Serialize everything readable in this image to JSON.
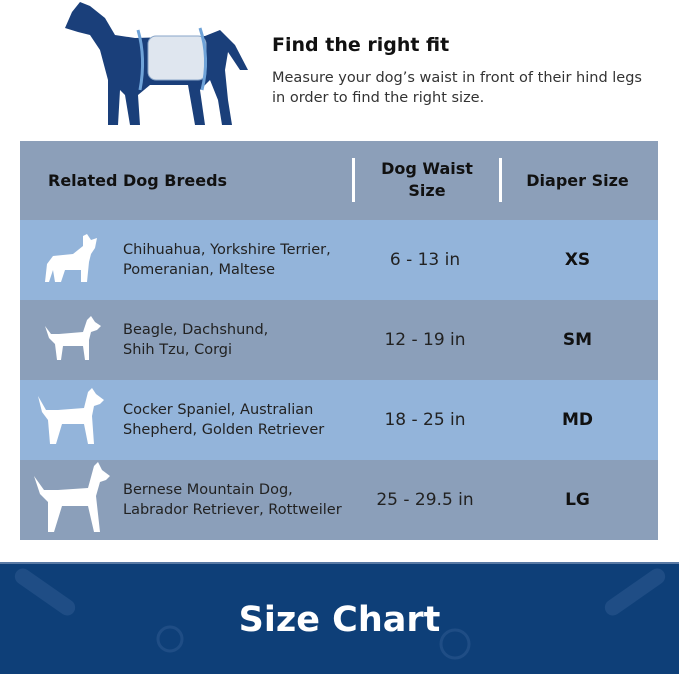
{
  "fit": {
    "title": "Find the right fit",
    "description": "Measure your dog’s waist in front of their hind legs in order to find the right size."
  },
  "table": {
    "headers": {
      "breeds": "Related Dog Breeds",
      "waist": "Dog Waist Size",
      "size": "Diaper Size"
    },
    "rows": [
      {
        "breeds_line1": "Chihuahua, Yorkshire Terrier,",
        "breeds_line2": "Pomeranian, Maltese",
        "waist": "6 - 13 in",
        "size": "XS",
        "icon": "french-bulldog-icon"
      },
      {
        "breeds_line1": "Beagle, Dachshund,",
        "breeds_line2": "Shih Tzu, Corgi",
        "waist": "12 - 19 in",
        "size": "SM",
        "icon": "small-dog-icon"
      },
      {
        "breeds_line1": "Cocker Spaniel, Australian",
        "breeds_line2": "Shepherd, Golden Retriever",
        "waist": "18 - 25 in",
        "size": "MD",
        "icon": "medium-dog-icon"
      },
      {
        "breeds_line1": "Bernese Mountain Dog,",
        "breeds_line2": "Labrador Retriever, Rottweiler",
        "waist": "25 - 29.5 in",
        "size": "LG",
        "icon": "large-dog-icon"
      }
    ]
  },
  "banner": {
    "title": "Size Chart"
  },
  "colors": {
    "header": "#8c9fb9",
    "row_light": "#93b4da",
    "row_dark": "#8b9fba",
    "banner": "#0e3f78",
    "dog": "#1a3f7a"
  }
}
